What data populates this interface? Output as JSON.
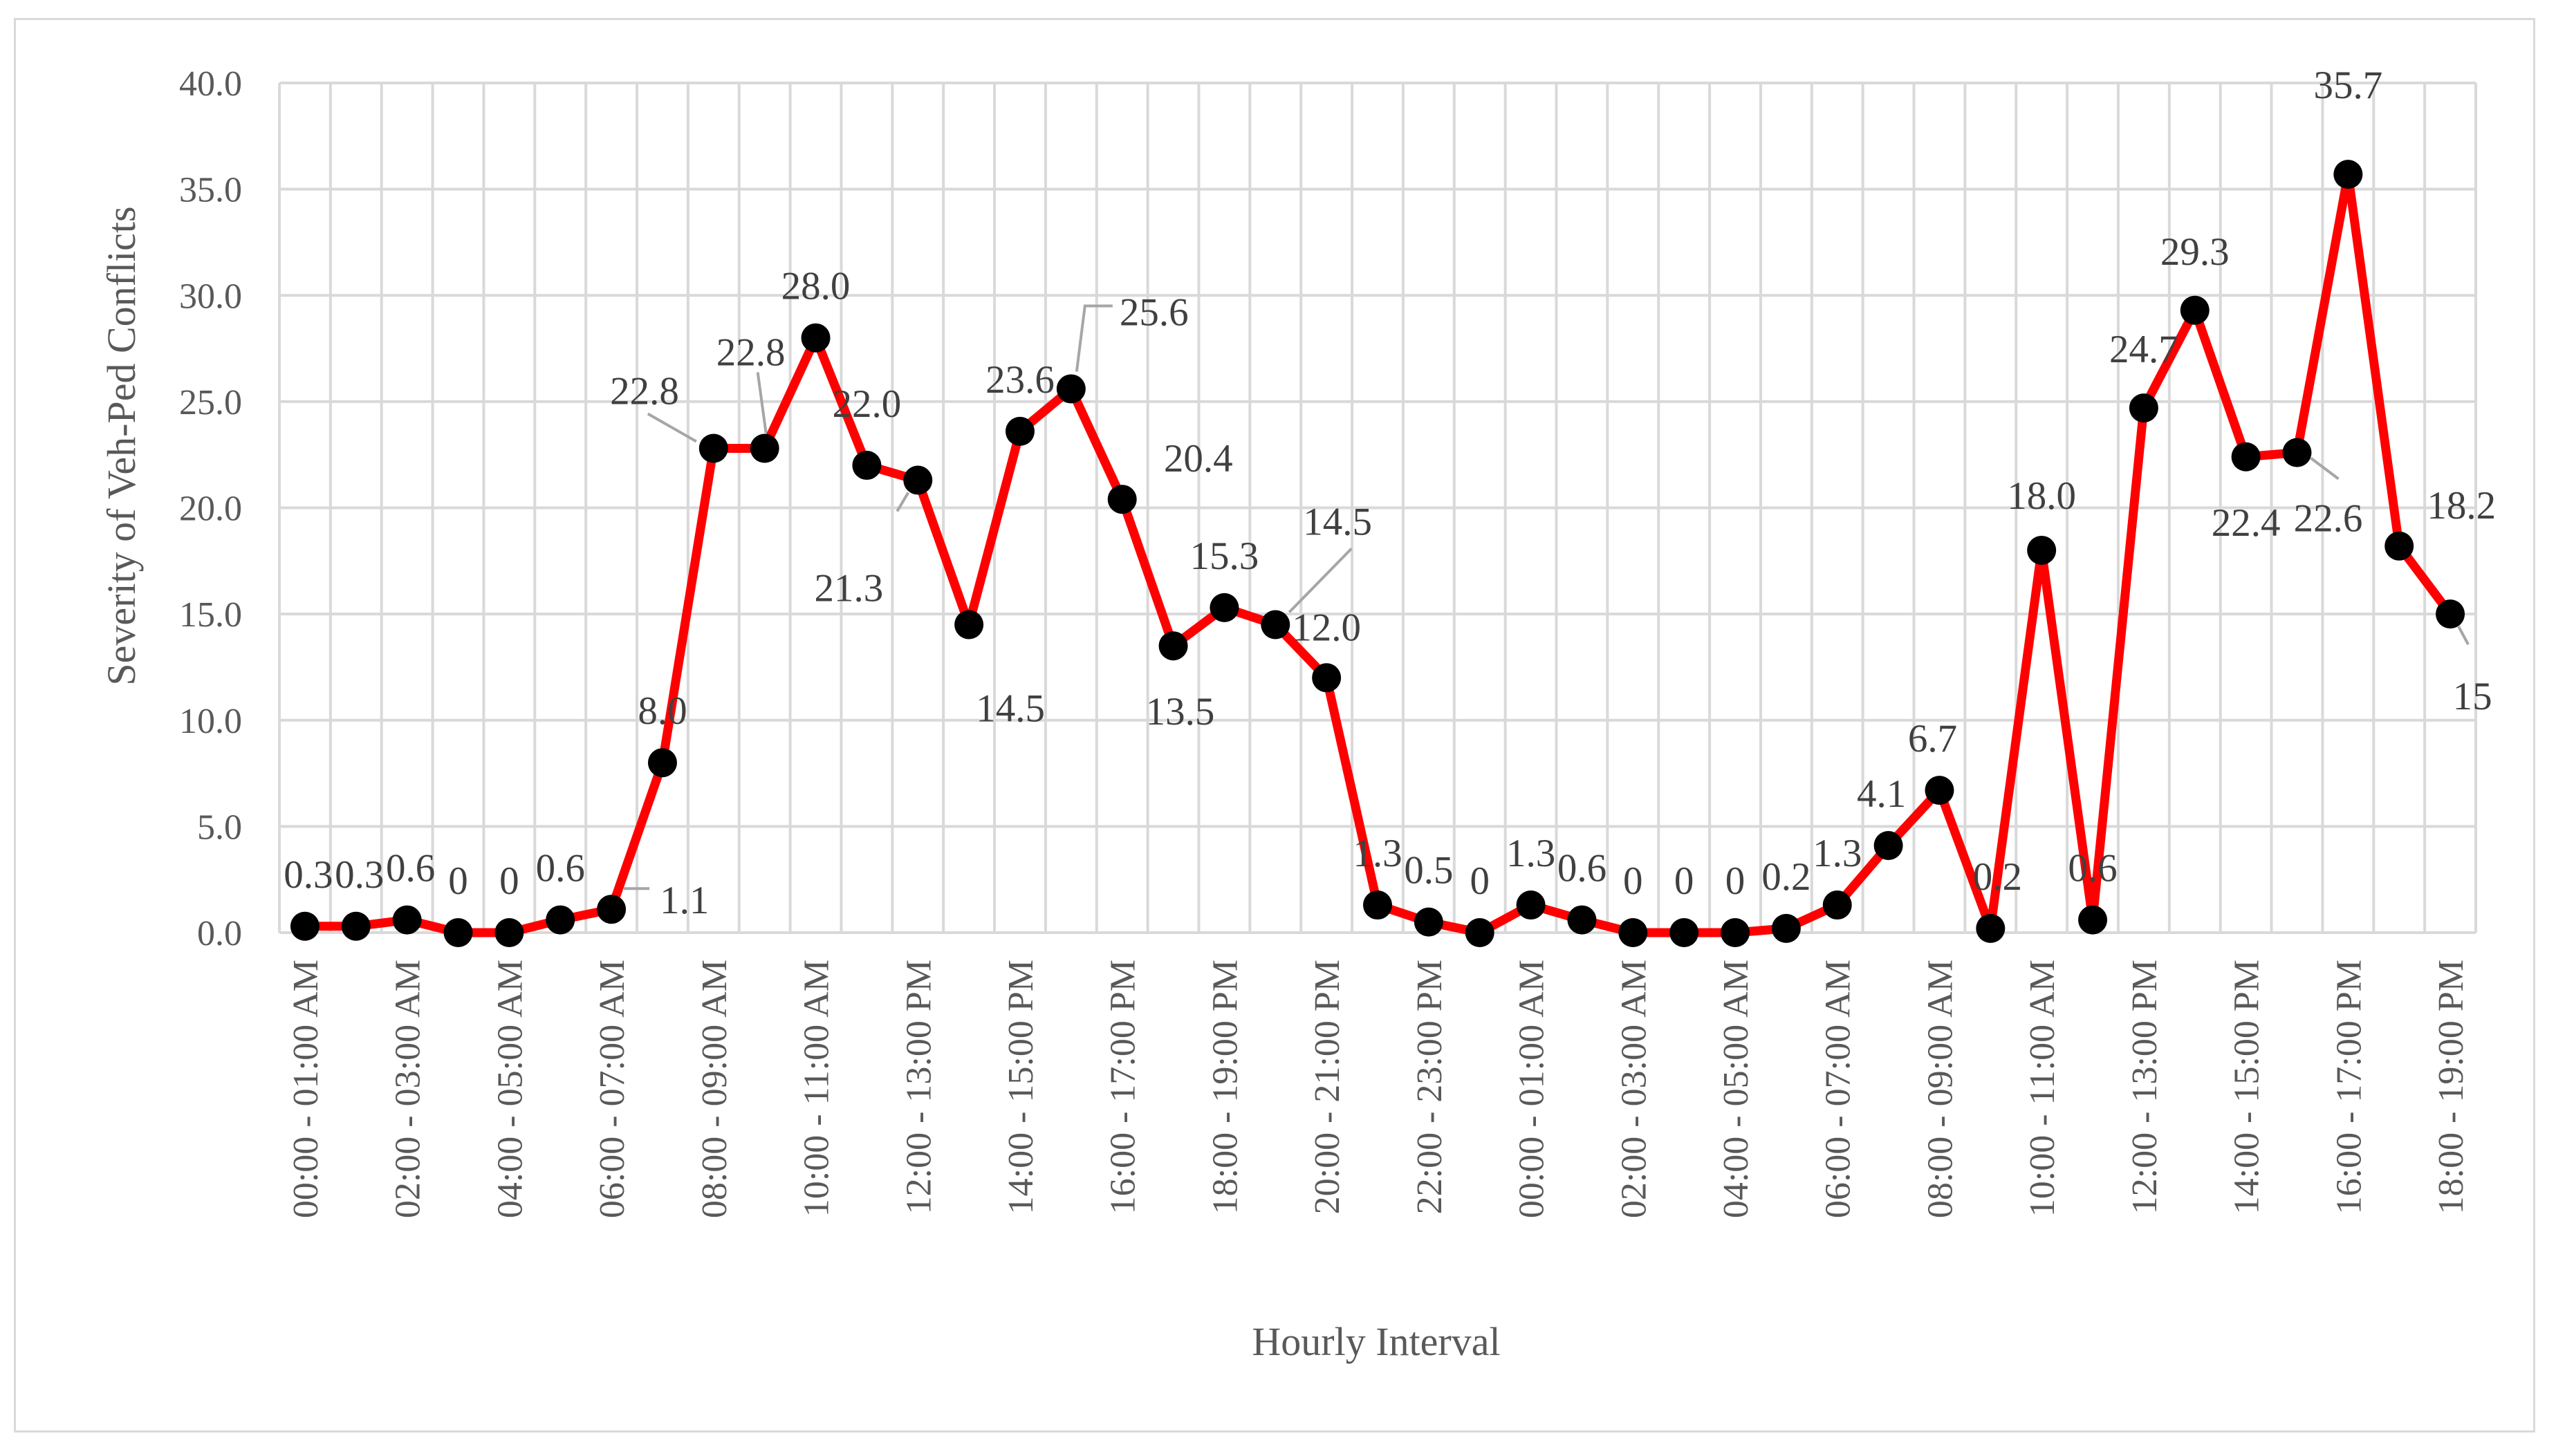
{
  "chart_data": {
    "type": "line",
    "title": "",
    "xlabel": "Hourly Interval",
    "ylabel": "Severity of  Veh-Ped Conflicts",
    "ylim": [
      0,
      40
    ],
    "yticks": [
      "0.0",
      "5.0",
      "10.0",
      "15.0",
      "20.0",
      "25.0",
      "30.0",
      "35.0",
      "40.0"
    ],
    "grid": true,
    "legend": "none",
    "categories": [
      "00:00 - 01:00 AM",
      "",
      "02:00 - 03:00 AM",
      "",
      "04:00 - 05:00 AM",
      "",
      "06:00 - 07:00 AM",
      "",
      "08:00 - 09:00 AM",
      "",
      "10:00 - 11:00 AM",
      "",
      "12:00 - 13:00 PM",
      "",
      "14:00 - 15:00 PM",
      "",
      "16:00 - 17:00 PM",
      "",
      "18:00 - 19:00 PM",
      "",
      "20:00 - 21:00 PM",
      "",
      "22:00 - 23:00 PM",
      "",
      "00:00 - 01:00 AM",
      "",
      "02:00 - 03:00 AM",
      "",
      "04:00 - 05:00 AM",
      "",
      "06:00 - 07:00 AM",
      "",
      "08:00 - 09:00 AM",
      "",
      "10:00 - 11:00 AM",
      "",
      "12:00 - 13:00 PM",
      "",
      "14:00 - 15:00 PM",
      "",
      "16:00 - 17:00 PM",
      "",
      "18:00 - 19:00 PM"
    ],
    "series": [
      {
        "values": [
          0.3,
          0.3,
          0.6,
          0,
          0,
          0.6,
          1.1,
          8.0,
          22.8,
          22.8,
          28.0,
          22.0,
          21.3,
          14.5,
          23.6,
          25.6,
          20.4,
          13.5,
          15.3,
          14.5,
          12.0,
          1.3,
          0.5,
          0,
          1.3,
          0.6,
          0,
          0,
          0,
          0.2,
          1.3,
          4.1,
          6.7,
          0.2,
          18.0,
          0.6,
          24.7,
          29.3,
          22.4,
          22.6,
          35.7,
          18.2,
          15
        ],
        "labels": [
          "0.3",
          "0.3",
          "0.6",
          "0",
          "0",
          "0.6",
          "1.1",
          "8.0",
          "22.8",
          "22.8",
          "28.0",
          "22.0",
          "21.3",
          "14.5",
          "23.6",
          "25.6",
          "20.4",
          "13.5",
          "15.3",
          "14.5",
          "12.0",
          "1.3",
          "0.5",
          "0",
          "1.3",
          "0.6",
          "0",
          "0",
          "0",
          "0.2",
          "1.3",
          "4.1",
          "6.7",
          "0.2",
          "18.0",
          "0.6",
          "24.7",
          "29.3",
          "22.4",
          "22.6",
          "35.7",
          "18.2",
          "15"
        ]
      }
    ],
    "colors": {
      "line": "#ff0000",
      "marker": "#000000",
      "grid": "#d9d9d9",
      "leader": "#a6a6a6"
    }
  }
}
